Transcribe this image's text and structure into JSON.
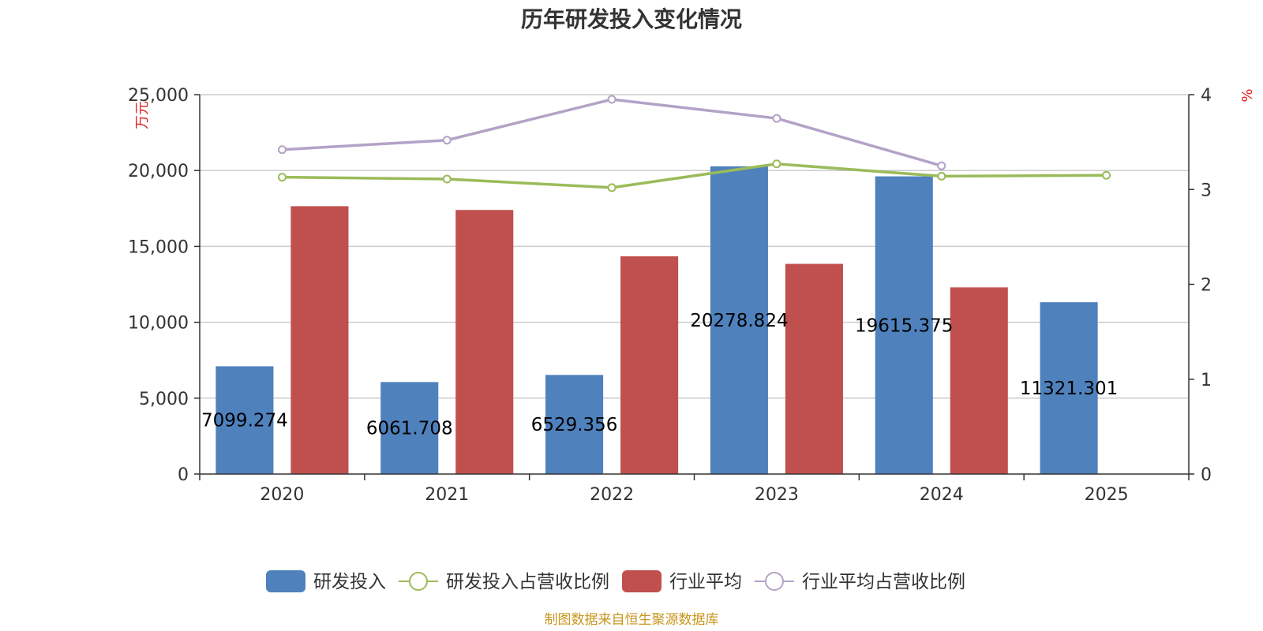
{
  "chart_data": {
    "type": "bar",
    "title": "历年研发投入变化情况",
    "categories": [
      "2020",
      "2021",
      "2022",
      "2023",
      "2024",
      "2025"
    ],
    "y_left": {
      "unit_label": "万元",
      "range": [
        0,
        25000
      ],
      "ticks": [
        "0",
        "5,000",
        "10,000",
        "15,000",
        "20,000",
        "25,000"
      ]
    },
    "y_right": {
      "unit_label": "%",
      "range": [
        0,
        4
      ],
      "ticks": [
        "0",
        "1",
        "2",
        "3",
        "4"
      ]
    },
    "grid": true,
    "legend_position": "bottom",
    "series": [
      {
        "name": "研发投入",
        "kind": "bar",
        "axis": "left",
        "color": "#4f81bd",
        "values": [
          7099.274,
          6061.708,
          6529.356,
          20278.824,
          19615.375,
          11321.301
        ],
        "labels": [
          "7099.274",
          "6061.708",
          "6529.356",
          "20278.824",
          "19615.375",
          "11321.301"
        ]
      },
      {
        "name": "研发投入占营收比例",
        "kind": "line",
        "axis": "right",
        "color": "#9bbb59",
        "values": [
          3.13,
          3.11,
          3.02,
          3.27,
          3.14,
          3.15
        ]
      },
      {
        "name": "行业平均",
        "kind": "bar",
        "axis": "left",
        "color": "#c0504d",
        "values": [
          17650,
          17400,
          14350,
          13850,
          12300,
          null
        ]
      },
      {
        "name": "行业平均占营收比例",
        "kind": "line",
        "axis": "right",
        "color": "#b3a2c7",
        "values": [
          3.42,
          3.52,
          3.95,
          3.75,
          3.25,
          null
        ]
      }
    ],
    "source": "制图数据来自恒生聚源数据库"
  }
}
